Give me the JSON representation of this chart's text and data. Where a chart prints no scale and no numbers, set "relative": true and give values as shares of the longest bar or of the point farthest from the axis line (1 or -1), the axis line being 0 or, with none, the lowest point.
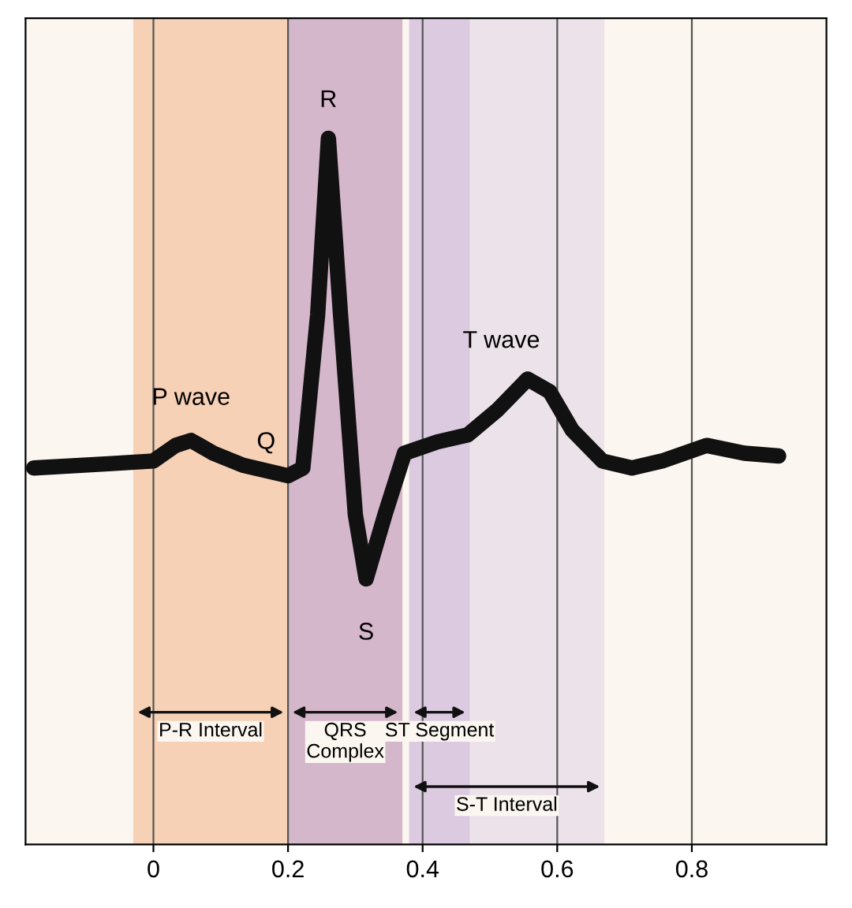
{
  "chart_data": {
    "type": "line",
    "relative": true,
    "color": "#111111",
    "x": [
      -0.178,
      -0.067,
      0,
      0.033,
      0.056,
      0.089,
      0.133,
      0.2,
      0.222,
      0.244,
      0.26,
      0.278,
      0.3,
      0.316,
      0.344,
      0.373,
      0.422,
      0.467,
      0.511,
      0.556,
      0.589,
      0.622,
      0.667,
      0.711,
      0.756,
      0.822,
      0.878,
      0.929
    ],
    "values": [
      0.533,
      0.539,
      0.543,
      0.565,
      0.572,
      0.554,
      0.537,
      0.522,
      0.533,
      0.75,
      1,
      0.75,
      0.467,
      0.376,
      0.467,
      0.554,
      0.57,
      0.58,
      0.615,
      0.659,
      0.641,
      0.587,
      0.543,
      0.533,
      0.543,
      0.565,
      0.554,
      0.55
    ],
    "xlim": [
      -0.19,
      1.0
    ],
    "xticks": [
      0,
      0.2,
      0.4,
      0.6,
      0.8
    ],
    "grid": "x",
    "tick_labels": "x",
    "annotations": [
      {
        "text": "P wave",
        "x": 0.056,
        "y": 0.572
      },
      {
        "text": "Q",
        "x": 0.2,
        "y": 0.522
      },
      {
        "text": "R",
        "x": 0.26,
        "y": 1
      },
      {
        "text": "S",
        "x": 0.316,
        "y": 0.376
      },
      {
        "text": "T wave",
        "x": 0.556,
        "y": 0.659
      }
    ],
    "bands": [
      {
        "axis": "x",
        "from": -0.03,
        "to": 0.2,
        "label": "P-R Interval",
        "color": "#f0894a"
      },
      {
        "axis": "x",
        "from": 0.2,
        "to": 0.37,
        "label": "QRS\nComplex",
        "color": "#8e3f86"
      },
      {
        "axis": "x",
        "from": 0.38,
        "to": 0.47,
        "label": "ST Segment",
        "color": "#b58cc2"
      },
      {
        "axis": "x",
        "from": 0.38,
        "to": 0.67,
        "label": "S-T Interval",
        "color": "#d2bde0"
      }
    ]
  }
}
